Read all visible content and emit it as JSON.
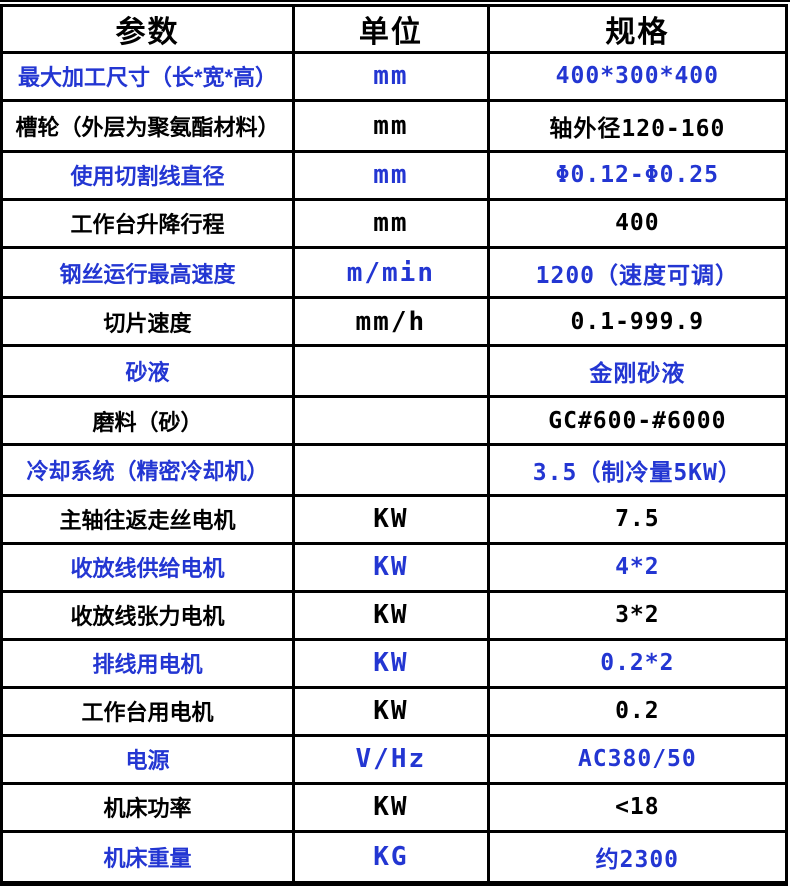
{
  "colors": {
    "accent_blue": "#2336d2",
    "text_black": "#000000",
    "border_black": "#000000",
    "background": "#ffffff"
  },
  "table": {
    "columns": [
      {
        "label": "参数"
      },
      {
        "label": "单位"
      },
      {
        "label": "规格"
      }
    ],
    "rows": [
      {
        "param": "最大加工尺寸（长*宽*高）",
        "unit": "mm",
        "spec": "400*300*400",
        "style": "blue"
      },
      {
        "param": "槽轮（外层为聚氨酯材料）",
        "unit": "mm",
        "spec": "轴外径120-160",
        "style": "black"
      },
      {
        "param": "使用切割线直径",
        "unit": "mm",
        "spec": "Φ0.12-Φ0.25",
        "style": "blue"
      },
      {
        "param": "工作台升降行程",
        "unit": "mm",
        "spec": "400",
        "style": "black"
      },
      {
        "param": "钢丝运行最高速度",
        "unit": "m/min",
        "spec": "1200（速度可调）",
        "style": "blue"
      },
      {
        "param": "切片速度",
        "unit": "mm/h",
        "spec": "0.1-999.9",
        "style": "black"
      },
      {
        "param": "砂液",
        "unit": "",
        "spec": "金刚砂液",
        "style": "blue"
      },
      {
        "param": "磨料（砂）",
        "unit": "",
        "spec": "GC#600-#6000",
        "style": "black"
      },
      {
        "param": "冷却系统（精密冷却机）",
        "unit": "",
        "spec": "3.5（制冷量5KW）",
        "style": "blue"
      },
      {
        "param": "主轴往返走丝电机",
        "unit": "KW",
        "spec": "7.5",
        "style": "black"
      },
      {
        "param": "收放线供给电机",
        "unit": "KW",
        "spec": "4*2",
        "style": "blue"
      },
      {
        "param": "收放线张力电机",
        "unit": "KW",
        "spec": "3*2",
        "style": "black"
      },
      {
        "param": "排线用电机",
        "unit": "KW",
        "spec": "0.2*2",
        "style": "blue"
      },
      {
        "param": "工作台用电机",
        "unit": "KW",
        "spec": "0.2",
        "style": "black"
      },
      {
        "param": "电源",
        "unit": "V/Hz",
        "spec": "AC380/50",
        "style": "blue"
      },
      {
        "param": "机床功率",
        "unit": "KW",
        "spec": "<18",
        "style": "black"
      },
      {
        "param": "机床重量",
        "unit": "KG",
        "spec": "约2300",
        "style": "blue"
      }
    ]
  }
}
